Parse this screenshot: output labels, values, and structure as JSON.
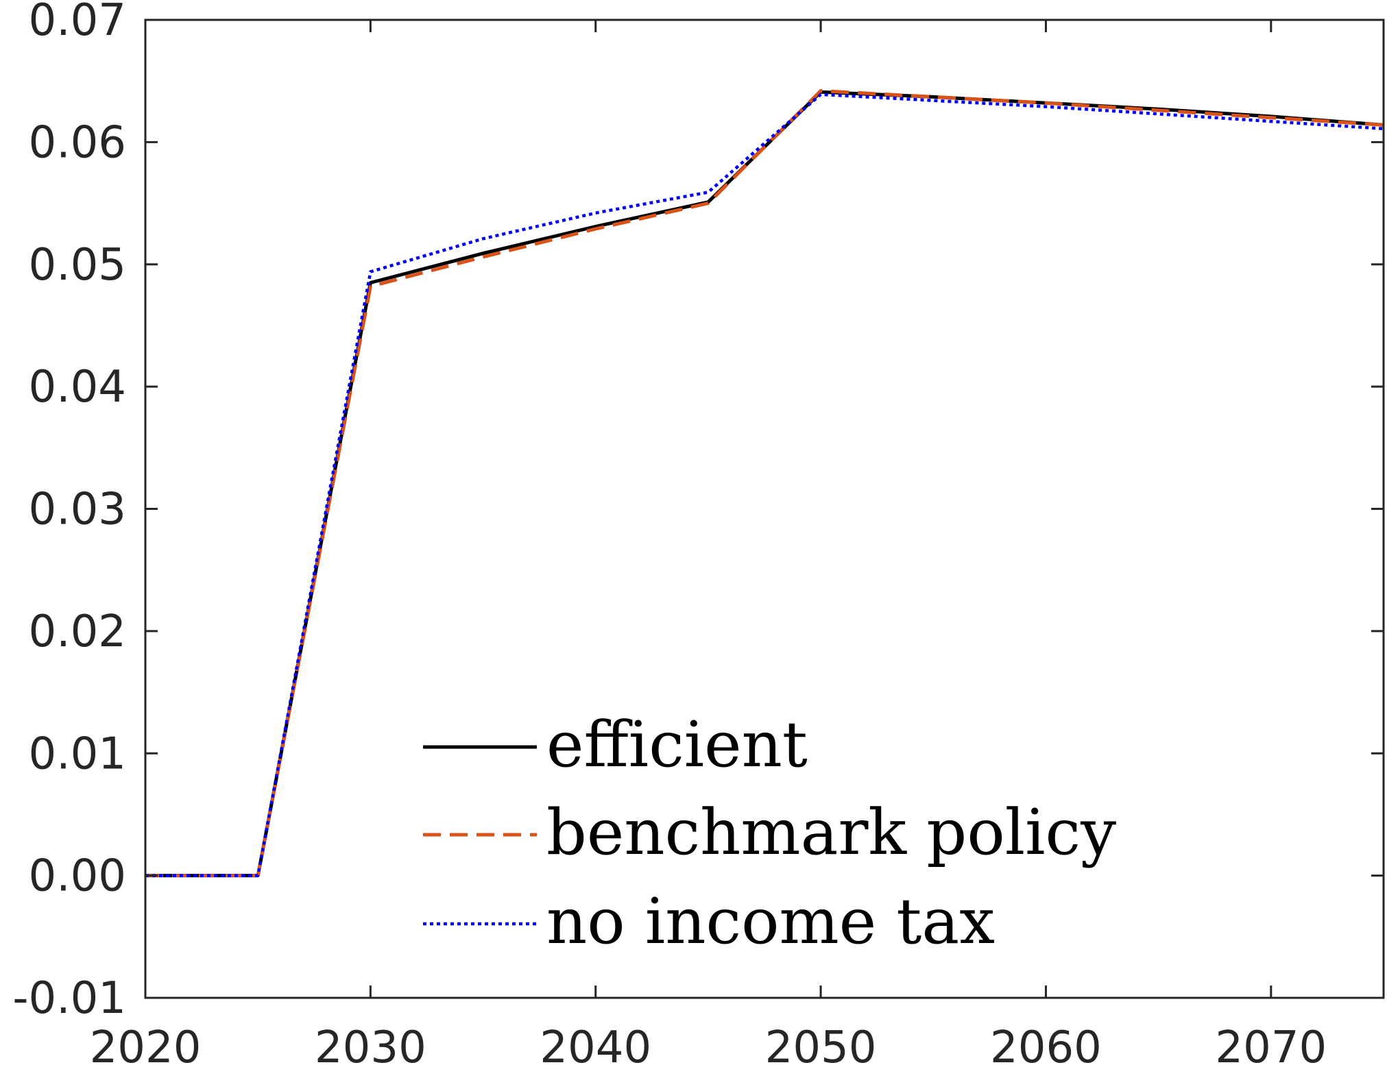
{
  "chart_data": {
    "type": "line",
    "title": "",
    "xlabel": "",
    "ylabel": "",
    "xlim": [
      2020,
      2075
    ],
    "ylim": [
      -0.01,
      0.07
    ],
    "x_ticks": [
      "2020",
      "2030",
      "2040",
      "2050",
      "2060",
      "2070"
    ],
    "x_tick_values": [
      2020,
      2030,
      2040,
      2050,
      2060,
      2070
    ],
    "y_ticks": [
      "-0.01",
      "0.00",
      "0.01",
      "0.02",
      "0.03",
      "0.04",
      "0.05",
      "0.06",
      "0.07"
    ],
    "y_tick_values": [
      -0.01,
      0.0,
      0.01,
      0.02,
      0.03,
      0.04,
      0.05,
      0.06,
      0.07
    ],
    "grid": false,
    "legend_position": "bottom-center",
    "x": [
      2020,
      2025,
      2030,
      2035,
      2040,
      2045,
      2050,
      2055,
      2060,
      2065,
      2070,
      2075
    ],
    "series": [
      {
        "name": "efficient",
        "color": "#000000",
        "style": "solid",
        "values": [
          0.0,
          0.0,
          0.0485,
          0.0509,
          0.0531,
          0.0551,
          0.0641,
          0.0637,
          0.0632,
          0.0627,
          0.0621,
          0.0614
        ]
      },
      {
        "name": "benchmark policy",
        "color": "#d95319",
        "style": "dashed",
        "values": [
          0.0,
          0.0,
          0.0482,
          0.0506,
          0.0529,
          0.055,
          0.0642,
          0.0637,
          0.0632,
          0.0626,
          0.062,
          0.0614
        ]
      },
      {
        "name": "no income tax",
        "color": "#0000ff",
        "style": "dotted",
        "values": [
          0.0,
          0.0,
          0.0494,
          0.0521,
          0.0542,
          0.0559,
          0.0639,
          0.0634,
          0.0629,
          0.0623,
          0.0617,
          0.0611
        ]
      }
    ]
  }
}
